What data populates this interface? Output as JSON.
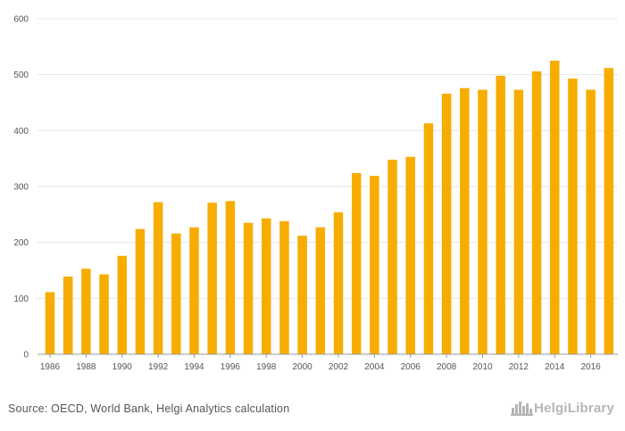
{
  "chart_data": {
    "type": "bar",
    "categories": [
      "1986",
      "1987",
      "1988",
      "1989",
      "1990",
      "1991",
      "1992",
      "1993",
      "1994",
      "1995",
      "1996",
      "1997",
      "1998",
      "1999",
      "2000",
      "2001",
      "2002",
      "2003",
      "2004",
      "2005",
      "2006",
      "2007",
      "2008",
      "2009",
      "2010",
      "2011",
      "2012",
      "2013",
      "2014",
      "2015",
      "2016",
      "2017"
    ],
    "x_tick_labels": [
      "1986",
      "1988",
      "1990",
      "1992",
      "1994",
      "1996",
      "1998",
      "2000",
      "2002",
      "2004",
      "2006",
      "2008",
      "2010",
      "2012",
      "2014",
      "2016"
    ],
    "values": [
      111,
      139,
      153,
      143,
      176,
      224,
      272,
      216,
      227,
      271,
      274,
      235,
      243,
      238,
      212,
      227,
      254,
      324,
      319,
      348,
      353,
      413,
      466,
      476,
      473,
      498,
      473,
      506,
      525,
      493,
      473,
      512
    ],
    "ylim": [
      0,
      600
    ],
    "y_ticks": [
      0,
      100,
      200,
      300,
      400,
      500,
      600
    ],
    "grid": true,
    "bar_color": "#f7ad00",
    "title": "",
    "xlabel": "",
    "ylabel": ""
  },
  "footer": {
    "source": "Source: OECD, World Bank, Helgi Analytics calculation",
    "brand": "HelgiLibrary",
    "brand_icon": "city-skyline-icon"
  }
}
